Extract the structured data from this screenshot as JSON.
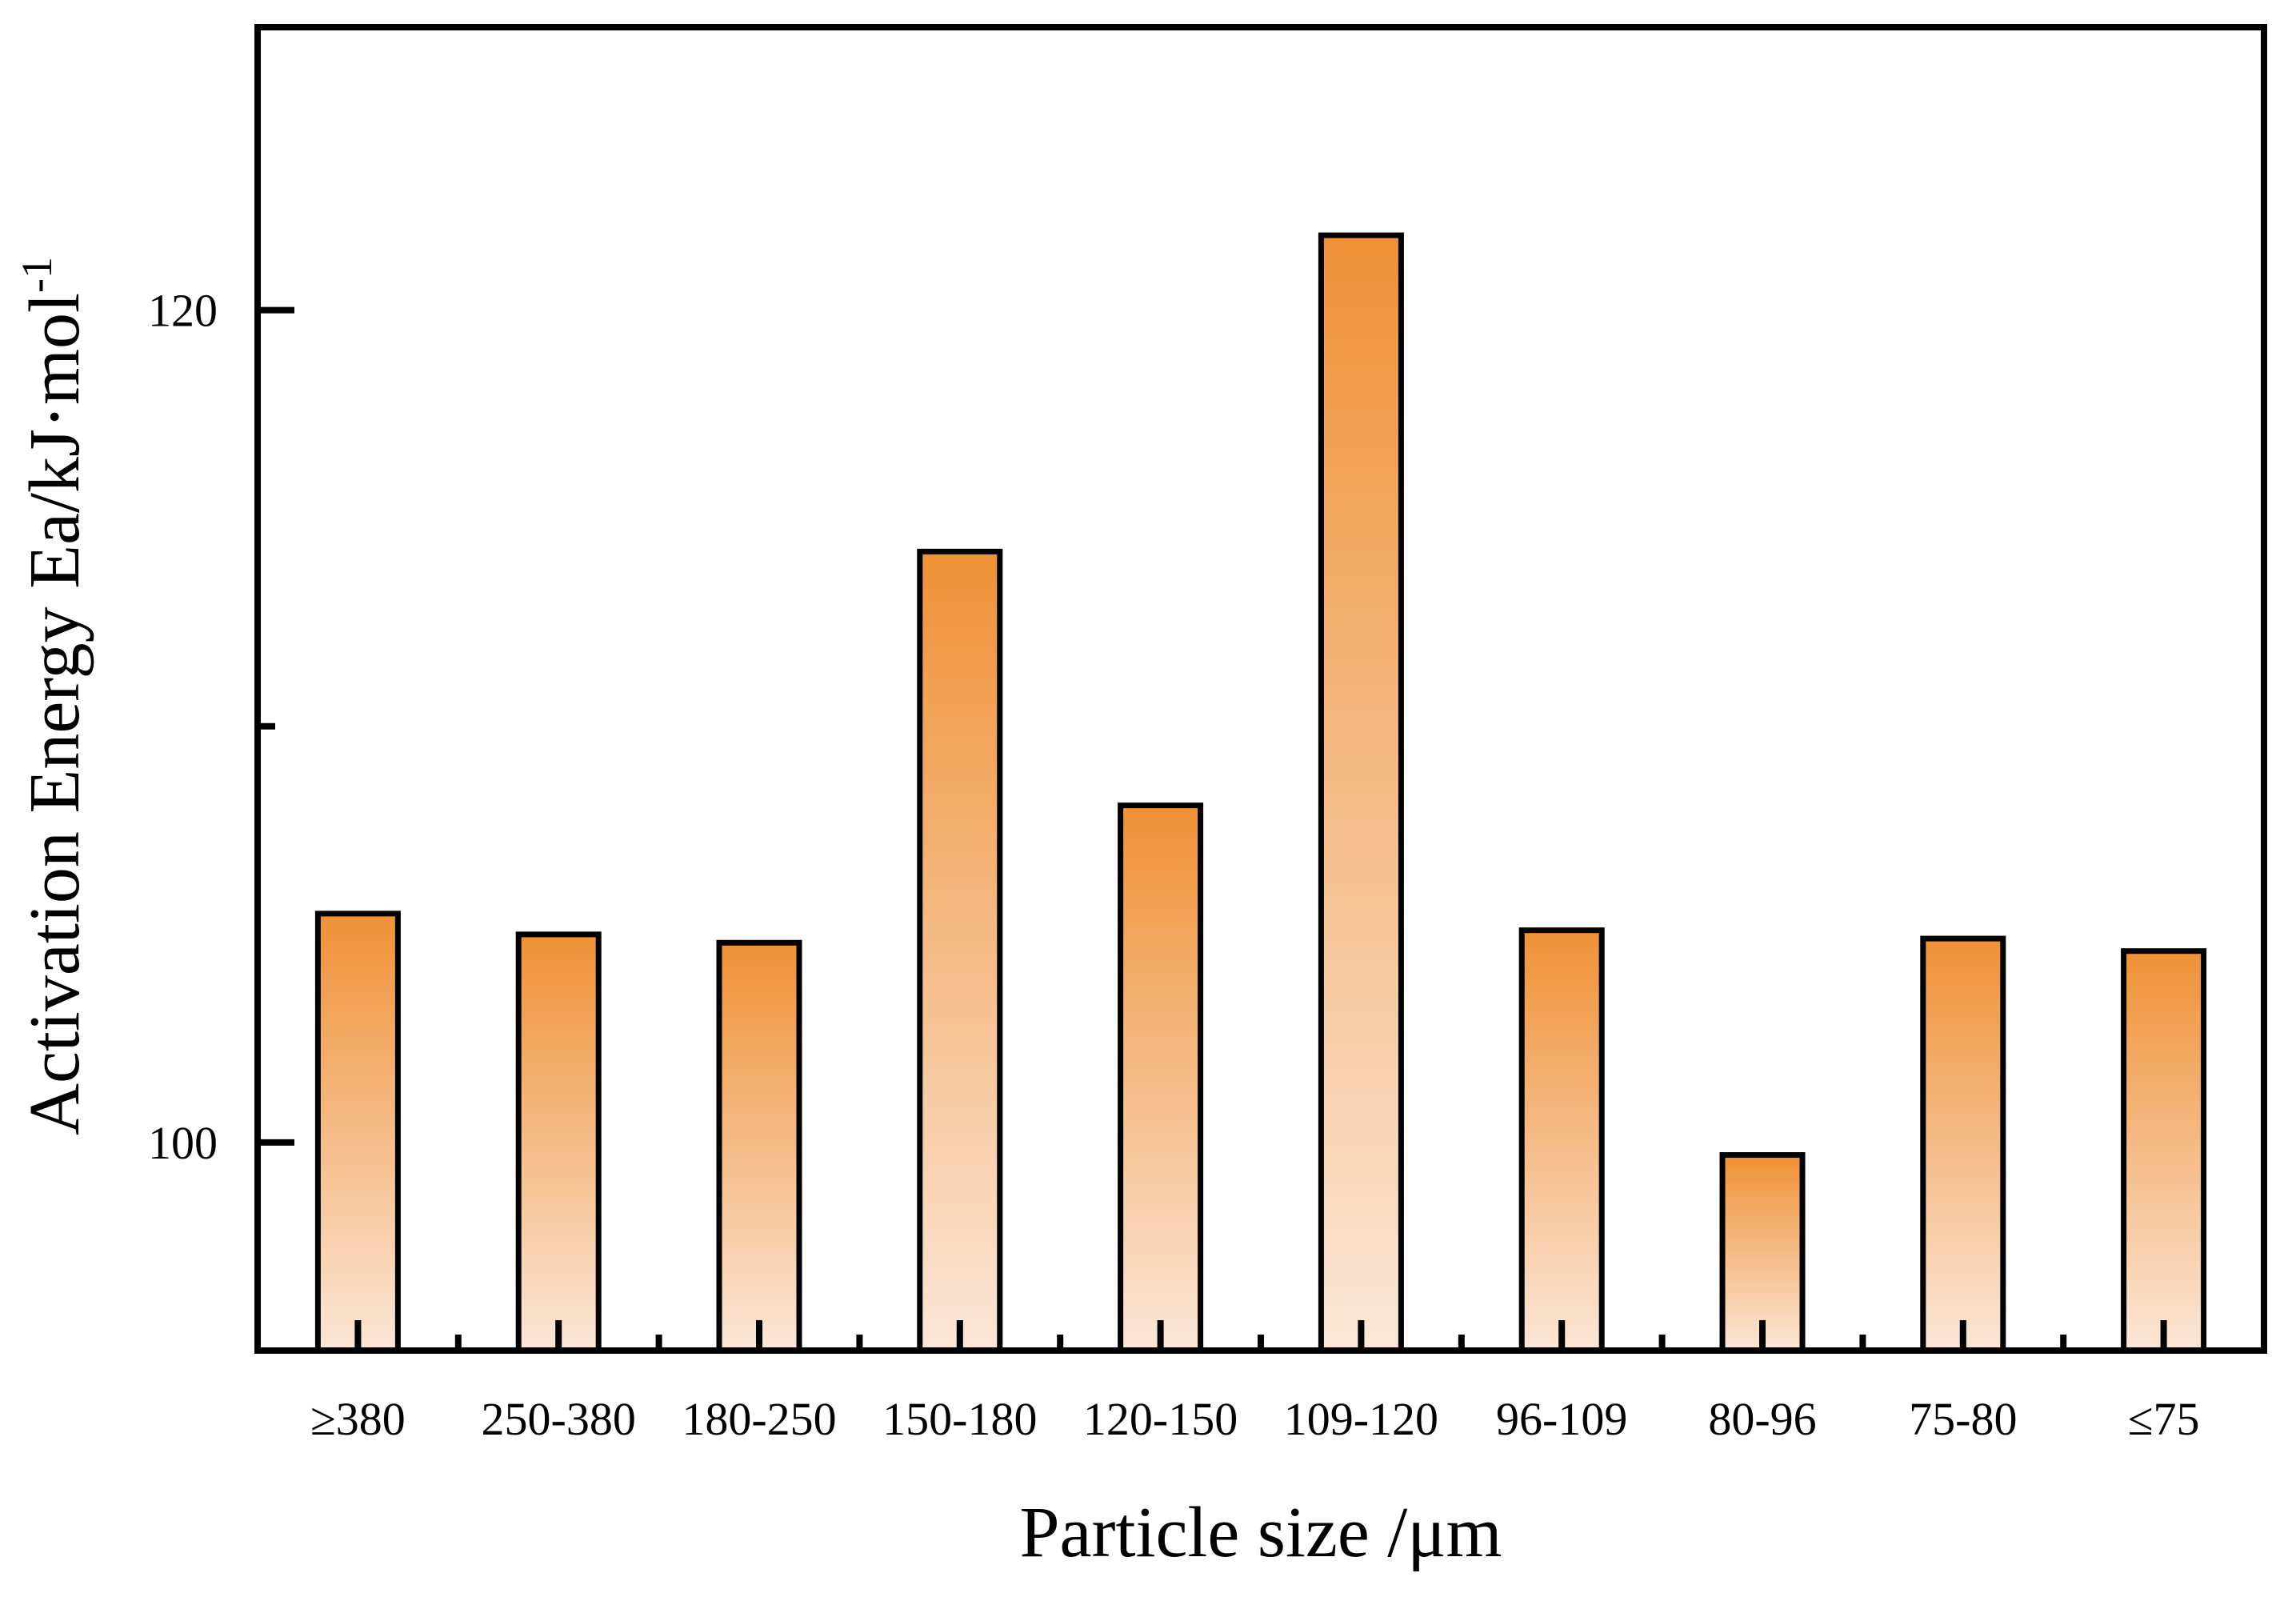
{
  "chart_data": {
    "type": "bar",
    "title": "",
    "xlabel": "Particle size /μm",
    "ylabel": "Activation Energy Ea/kJ·mol",
    "ylabel_superscript": "-1",
    "categories": [
      "≥380",
      "250-380",
      "180-250",
      "150-180",
      "120-150",
      "109-120",
      "96-109",
      "80-96",
      "75-80",
      "≤75"
    ],
    "values": [
      105.5,
      105.0,
      104.8,
      114.2,
      108.1,
      121.8,
      105.1,
      99.7,
      104.9,
      104.6
    ],
    "ylim": [
      95,
      126.8
    ],
    "yticks": [
      100,
      110,
      120
    ],
    "ytick_labels": [
      "100",
      "",
      "120"
    ],
    "grid": false,
    "bar_gradient": [
      "#ef9136",
      "#fbe6d6"
    ]
  }
}
